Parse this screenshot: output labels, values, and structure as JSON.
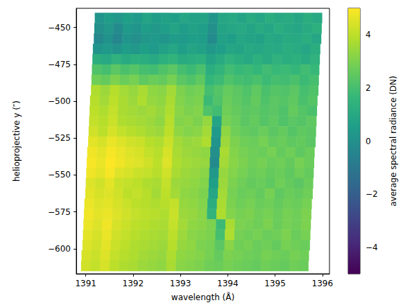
{
  "chart_data": {
    "type": "heatmap",
    "xlabel": "wavelength (Å)",
    "ylabel": "helioprojective y (″)",
    "xlim": [
      1390.8,
      1396.15
    ],
    "xticks": [
      1391,
      1392,
      1393,
      1394,
      1395,
      1396
    ],
    "ylim": [
      -617,
      -437
    ],
    "yticks": [
      {
        "value": -450,
        "label": "−450"
      },
      {
        "value": -475,
        "label": "−475"
      },
      {
        "value": -500,
        "label": "−500"
      },
      {
        "value": -525,
        "label": "−525"
      },
      {
        "value": -550,
        "label": "−550"
      },
      {
        "value": -575,
        "label": "−575"
      },
      {
        "value": -600,
        "label": "−600"
      }
    ],
    "color": "viridis",
    "colorbar": {
      "label": "average spectral radiance (DN)",
      "range": [
        -5,
        5
      ],
      "ticks": [
        {
          "value": -4,
          "label": "−4"
        },
        {
          "value": -2,
          "label": "−2"
        },
        0,
        2,
        4
      ]
    },
    "rows": [
      {
        "y": [
          -447,
          -440
        ],
        "x": [
          1391.19,
          1395.99
        ],
        "values": [
          0.2,
          0.5,
          0.3,
          0.6,
          0.4,
          0.8,
          0.5,
          0.7,
          0.6,
          0.9,
          0.7,
          0.8,
          0.2,
          0.9,
          1.0,
          0.8,
          1.1,
          0.9,
          1.2,
          1.0,
          1.1,
          0.9,
          1.2,
          1.0
        ]
      },
      {
        "y": [
          -454,
          -447
        ],
        "x": [
          1391.18,
          1395.98
        ],
        "values": [
          0.0,
          0.3,
          -0.2,
          0.4,
          0.2,
          0.5,
          0.3,
          0.6,
          0.8,
          0.5,
          0.7,
          0.6,
          0.0,
          0.8,
          0.9,
          1.0,
          0.8,
          1.1,
          0.9,
          1.2,
          1.0,
          0.9,
          1.1,
          1.3
        ]
      },
      {
        "y": [
          -461,
          -454
        ],
        "x": [
          1391.17,
          1395.97
        ],
        "values": [
          -0.3,
          0.1,
          -0.4,
          0.2,
          0.0,
          0.3,
          0.4,
          0.2,
          0.5,
          0.4,
          0.6,
          0.5,
          -0.2,
          0.7,
          0.6,
          0.9,
          0.8,
          0.7,
          1.0,
          0.9,
          1.1,
          1.0,
          1.2,
          0.9
        ]
      },
      {
        "y": [
          -468,
          -461
        ],
        "x": [
          1391.15,
          1395.95
        ],
        "values": [
          0.2,
          0.4,
          0.1,
          0.5,
          0.3,
          0.6,
          0.4,
          0.7,
          0.9,
          0.6,
          0.8,
          0.7,
          0.3,
          0.6,
          0.9,
          0.8,
          1.0,
          0.9,
          1.1,
          1.0,
          1.2,
          1.1,
          0.9,
          1.2
        ]
      },
      {
        "y": [
          -475,
          -468
        ],
        "x": [
          1391.14,
          1395.94
        ],
        "values": [
          1.2,
          1.0,
          1.4,
          1.1,
          1.3,
          1.2,
          1.0,
          1.3,
          1.5,
          1.1,
          1.2,
          1.3,
          0.8,
          1.1,
          1.4,
          1.2,
          1.0,
          1.3,
          1.1,
          1.4,
          1.2,
          1.3,
          1.1,
          1.4
        ]
      },
      {
        "y": [
          -482,
          -475
        ],
        "x": [
          1391.13,
          1395.93
        ],
        "values": [
          2.2,
          2.0,
          2.4,
          2.1,
          2.3,
          2.0,
          1.9,
          2.2,
          2.4,
          2.0,
          1.8,
          2.1,
          1.2,
          1.5,
          1.9,
          1.7,
          1.8,
          1.6,
          1.9,
          1.7,
          1.8,
          1.6,
          1.9,
          1.7
        ]
      },
      {
        "y": [
          -489,
          -482
        ],
        "x": [
          1391.12,
          1395.92
        ],
        "values": [
          2.8,
          2.6,
          3.0,
          2.7,
          2.9,
          2.5,
          2.7,
          2.6,
          2.9,
          2.4,
          2.2,
          2.5,
          1.6,
          1.8,
          2.2,
          2.0,
          1.9,
          2.1,
          1.8,
          2.0,
          1.9,
          2.1,
          1.8,
          2.0
        ]
      },
      {
        "y": [
          -496,
          -489
        ],
        "x": [
          1391.11,
          1395.91
        ],
        "values": [
          3.8,
          3.5,
          3.9,
          3.6,
          3.4,
          3.7,
          3.3,
          3.2,
          3.6,
          3.0,
          2.8,
          2.9,
          2.0,
          2.3,
          2.6,
          2.4,
          2.2,
          2.5,
          2.1,
          2.3,
          2.2,
          2.4,
          2.0,
          2.2
        ]
      },
      {
        "y": [
          -503,
          -496
        ],
        "x": [
          1391.09,
          1395.89
        ],
        "values": [
          3.9,
          3.6,
          4.0,
          3.7,
          3.5,
          3.8,
          3.4,
          3.3,
          3.7,
          3.1,
          2.9,
          3.0,
          1.8,
          2.2,
          2.7,
          2.5,
          2.3,
          2.6,
          2.2,
          2.4,
          2.3,
          2.5,
          2.1,
          2.3
        ]
      },
      {
        "y": [
          -510,
          -503
        ],
        "x": [
          1391.08,
          1395.88
        ],
        "values": [
          4.0,
          3.8,
          4.1,
          3.7,
          3.6,
          3.5,
          3.6,
          3.4,
          3.8,
          3.2,
          3.0,
          3.1,
          2.2,
          1.9,
          2.8,
          2.6,
          2.4,
          2.5,
          2.3,
          2.4,
          2.2,
          2.6,
          2.3,
          2.1
        ]
      },
      {
        "y": [
          -517,
          -510
        ],
        "x": [
          1391.07,
          1395.87
        ],
        "values": [
          4.1,
          3.9,
          4.2,
          3.8,
          3.7,
          3.6,
          3.5,
          3.3,
          3.9,
          3.1,
          3.2,
          3.0,
          3.4,
          0.8,
          2.9,
          2.7,
          2.4,
          2.6,
          2.3,
          2.5,
          2.2,
          2.4,
          2.3,
          2.5
        ]
      },
      {
        "y": [
          -524,
          -517
        ],
        "x": [
          1391.06,
          1395.86
        ],
        "values": [
          4.3,
          4.0,
          4.4,
          4.1,
          3.9,
          3.8,
          3.6,
          3.5,
          4.0,
          3.3,
          3.1,
          3.2,
          3.6,
          0.4,
          3.3,
          2.8,
          2.6,
          2.5,
          2.7,
          2.4,
          2.6,
          2.3,
          2.5,
          2.4
        ]
      },
      {
        "y": [
          -531,
          -524
        ],
        "x": [
          1391.05,
          1395.85
        ],
        "values": [
          4.6,
          4.4,
          4.7,
          4.5,
          4.3,
          4.2,
          3.9,
          3.8,
          4.2,
          3.6,
          3.4,
          3.5,
          3.8,
          0.2,
          3.5,
          3.0,
          2.8,
          2.7,
          2.9,
          2.6,
          2.7,
          2.5,
          2.6,
          2.4
        ]
      },
      {
        "y": [
          -538,
          -531
        ],
        "x": [
          1391.03,
          1395.83
        ],
        "values": [
          4.8,
          4.6,
          4.9,
          4.7,
          4.5,
          4.4,
          4.1,
          3.9,
          4.4,
          3.7,
          3.5,
          3.4,
          3.3,
          0.0,
          3.7,
          3.1,
          2.9,
          2.8,
          2.7,
          2.9,
          2.6,
          2.8,
          2.5,
          2.7
        ]
      },
      {
        "y": [
          -545,
          -538
        ],
        "x": [
          1391.02,
          1395.82
        ],
        "values": [
          4.9,
          4.7,
          5.0,
          4.8,
          4.6,
          4.5,
          4.3,
          4.0,
          4.5,
          3.8,
          3.6,
          3.5,
          3.4,
          -0.2,
          3.6,
          3.2,
          3.0,
          2.8,
          2.9,
          2.7,
          2.8,
          2.6,
          2.9,
          2.7
        ]
      },
      {
        "y": [
          -552,
          -545
        ],
        "x": [
          1391.01,
          1395.81
        ],
        "values": [
          4.8,
          4.6,
          4.9,
          4.5,
          4.4,
          4.2,
          4.1,
          3.9,
          4.3,
          3.7,
          3.5,
          3.4,
          3.2,
          0.3,
          3.4,
          3.1,
          2.9,
          2.7,
          2.8,
          2.6,
          2.7,
          2.5,
          2.8,
          2.6
        ]
      },
      {
        "y": [
          -559,
          -552
        ],
        "x": [
          1391.0,
          1395.8
        ],
        "values": [
          4.5,
          4.3,
          4.6,
          4.2,
          4.1,
          4.0,
          3.8,
          3.7,
          4.1,
          3.5,
          3.4,
          3.3,
          3.1,
          0.6,
          3.5,
          3.0,
          2.8,
          2.6,
          2.7,
          2.5,
          2.8,
          2.6,
          2.4,
          2.7
        ]
      },
      {
        "y": [
          -566,
          -559
        ],
        "x": [
          1390.99,
          1395.79
        ],
        "values": [
          4.6,
          4.4,
          4.5,
          4.3,
          4.0,
          4.1,
          3.9,
          3.6,
          4.0,
          3.6,
          3.3,
          3.2,
          3.0,
          0.9,
          3.6,
          2.9,
          2.7,
          2.8,
          2.6,
          2.9,
          2.5,
          2.7,
          2.6,
          2.8
        ]
      },
      {
        "y": [
          -573,
          -566
        ],
        "x": [
          1390.97,
          1395.77
        ],
        "values": [
          4.7,
          4.5,
          4.6,
          4.4,
          4.2,
          4.0,
          3.9,
          3.8,
          3.9,
          4.1,
          3.4,
          3.3,
          3.1,
          1.2,
          3.7,
          3.0,
          2.8,
          2.9,
          2.7,
          2.8,
          2.6,
          2.8,
          2.7,
          2.9
        ]
      },
      {
        "y": [
          -580,
          -573
        ],
        "x": [
          1390.96,
          1395.76
        ],
        "values": [
          4.8,
          4.6,
          4.7,
          4.5,
          4.3,
          4.1,
          4.0,
          3.9,
          3.8,
          4.2,
          3.5,
          3.4,
          3.2,
          1.5,
          3.8,
          3.1,
          2.9,
          3.0,
          2.8,
          2.9,
          2.7,
          2.9,
          2.8,
          3.0
        ]
      },
      {
        "y": [
          -587,
          -580
        ],
        "x": [
          1390.95,
          1395.75
        ],
        "values": [
          4.7,
          4.5,
          4.8,
          4.4,
          4.2,
          4.0,
          3.9,
          3.8,
          3.7,
          4.1,
          3.6,
          3.3,
          3.2,
          3.0,
          1.8,
          3.7,
          3.0,
          2.9,
          2.8,
          3.0,
          2.7,
          2.9,
          2.8,
          3.0
        ]
      },
      {
        "y": [
          -594,
          -587
        ],
        "x": [
          1390.94,
          1395.74
        ],
        "values": [
          4.6,
          4.4,
          4.7,
          4.3,
          4.1,
          3.9,
          3.8,
          3.7,
          3.6,
          4.0,
          3.5,
          3.2,
          3.1,
          3.0,
          2.0,
          3.8,
          2.9,
          2.8,
          2.9,
          2.7,
          2.8,
          3.0,
          2.7,
          2.9
        ]
      },
      {
        "y": [
          -601,
          -594
        ],
        "x": [
          1390.93,
          1395.73
        ],
        "values": [
          4.5,
          4.3,
          4.6,
          4.2,
          4.0,
          3.8,
          3.7,
          3.6,
          3.5,
          3.9,
          3.4,
          3.3,
          3.0,
          2.9,
          2.4,
          3.2,
          2.8,
          2.9,
          2.7,
          2.8,
          2.6,
          2.9,
          2.8,
          2.7
        ]
      },
      {
        "y": [
          -608,
          -601
        ],
        "x": [
          1390.91,
          1395.71
        ],
        "values": [
          4.4,
          4.2,
          4.5,
          4.1,
          3.9,
          3.8,
          3.6,
          3.5,
          3.4,
          3.8,
          3.3,
          3.2,
          3.1,
          2.9,
          2.6,
          3.0,
          2.9,
          2.8,
          2.7,
          2.9,
          2.8,
          2.7,
          2.9,
          2.8
        ]
      },
      {
        "y": [
          -615,
          -608
        ],
        "x": [
          1390.9,
          1395.7
        ],
        "values": [
          4.3,
          4.1,
          4.4,
          4.0,
          3.8,
          3.7,
          3.5,
          3.4,
          3.3,
          3.7,
          3.2,
          3.1,
          3.0,
          2.8,
          2.7,
          2.9,
          2.8,
          2.7,
          2.6,
          2.8,
          2.7,
          2.6,
          2.8,
          2.7
        ]
      }
    ]
  }
}
